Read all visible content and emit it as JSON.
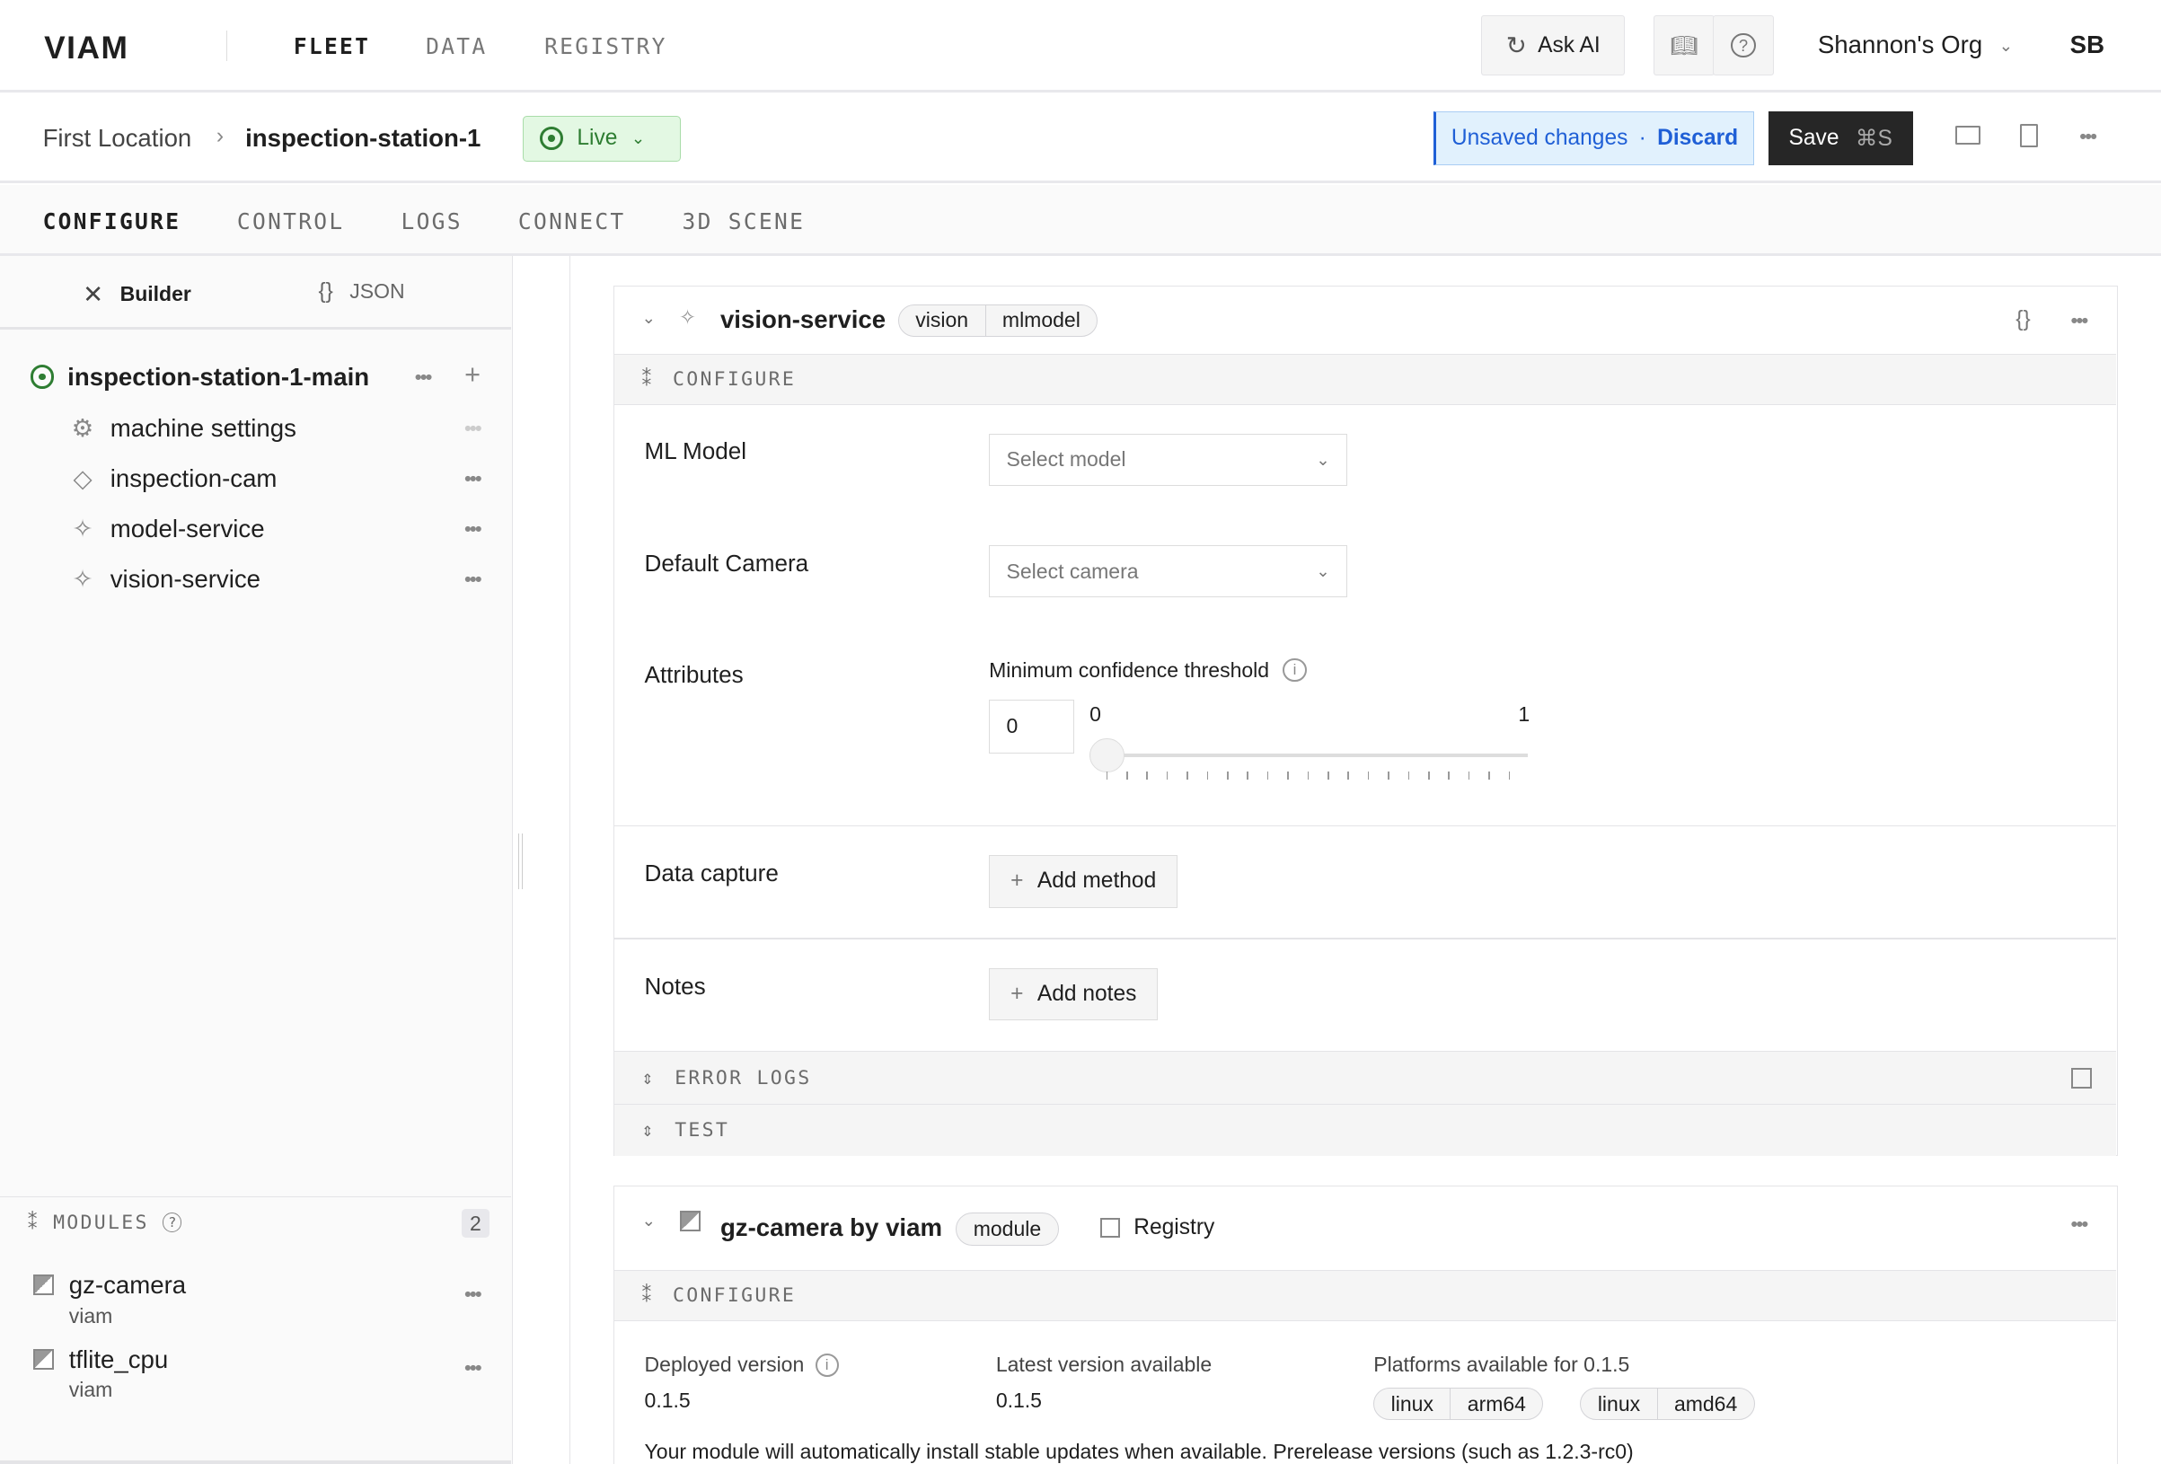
{
  "topnav": {
    "logo": "VIAM",
    "links": [
      "FLEET",
      "DATA",
      "REGISTRY"
    ],
    "ask_ai": "Ask AI",
    "org": "Shannon's Org",
    "avatar": "SB"
  },
  "breadcrumb": {
    "location": "First Location",
    "machine": "inspection-station-1",
    "status": "Live"
  },
  "actions": {
    "unsaved": "Unsaved changes",
    "discard": "Discard",
    "save": "Save",
    "shortcut": "⌘S"
  },
  "tabs": [
    "CONFIGURE",
    "CONTROL",
    "LOGS",
    "CONNECT",
    "3D SCENE"
  ],
  "sidebar": {
    "modes": [
      "Builder",
      "JSON"
    ],
    "root": "inspection-station-1-main",
    "items": [
      {
        "label": "machine settings",
        "icon": "gear-icon"
      },
      {
        "label": "inspection-cam",
        "icon": "diamond-icon"
      },
      {
        "label": "model-service",
        "icon": "sparkle-icon"
      },
      {
        "label": "vision-service",
        "icon": "sparkle-icon"
      }
    ],
    "modules_title": "MODULES",
    "modules_count": "2",
    "modules": [
      {
        "name": "gz-camera",
        "owner": "viam"
      },
      {
        "name": "tflite_cpu",
        "owner": "viam"
      }
    ]
  },
  "vision": {
    "name": "vision-service",
    "api": "vision",
    "model": "mlmodel",
    "configure": "CONFIGURE",
    "ml_model_label": "ML Model",
    "ml_model_placeholder": "Select model",
    "camera_label": "Default Camera",
    "camera_placeholder": "Select camera",
    "attributes_label": "Attributes",
    "threshold_label": "Minimum confidence threshold",
    "threshold_value": "0",
    "slider_min": "0",
    "slider_max": "1",
    "slider_fraction": 0,
    "data_capture_label": "Data capture",
    "add_method": "Add method",
    "notes_label": "Notes",
    "add_notes": "Add notes",
    "error_logs": "ERROR LOGS",
    "test": "TEST"
  },
  "module_card": {
    "name": "gz-camera by viam",
    "badge": "module",
    "registry": "Registry",
    "configure": "CONFIGURE",
    "deployed_label": "Deployed version",
    "deployed": "0.1.5",
    "latest_label": "Latest version available",
    "latest": "0.1.5",
    "platforms_label": "Platforms available for 0.1.5",
    "platforms": [
      [
        "linux",
        "arm64"
      ],
      [
        "linux",
        "amd64"
      ]
    ],
    "note": "Your module will automatically install stable updates when available. Prerelease versions (such as 1.2.3-rc0)"
  },
  "colors": {
    "live_green": "#2e7d32",
    "accent_blue": "#1f5fd6",
    "save_bg": "#262626"
  }
}
